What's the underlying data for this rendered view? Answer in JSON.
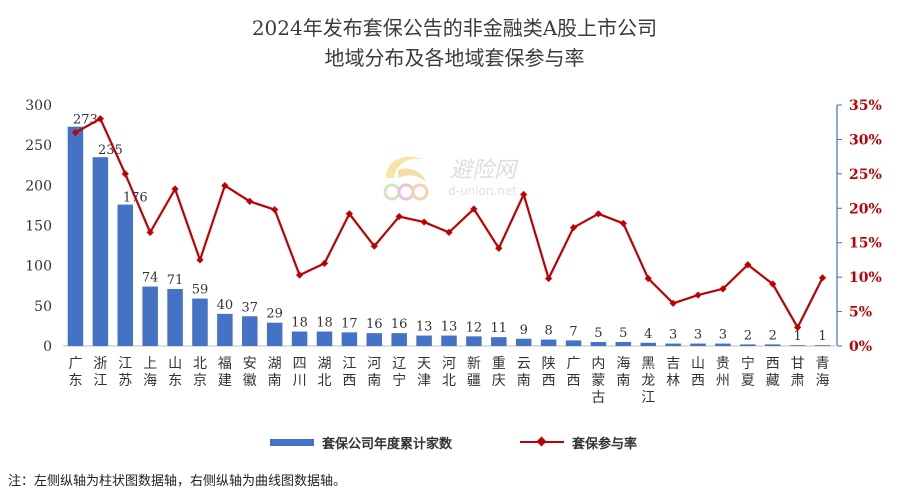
{
  "title_line1": "2024年发布套保公告的非金融类A股上市公司",
  "title_line2": "地域分布及各地域套保参与率",
  "note": "注：左侧纵轴为柱状图数据轴，右侧纵轴为曲线图数据轴。",
  "watermark": {
    "cn": "避险网",
    "en": "d-union.net"
  },
  "colors": {
    "bar": "#4472c4",
    "line": "#c00000",
    "axis_text": "#333333"
  },
  "chart_data": {
    "type": "bar+line",
    "categories": [
      "广东",
      "浙江",
      "江苏",
      "上海",
      "山东",
      "北京",
      "福建",
      "安徽",
      "湖南",
      "四川",
      "湖北",
      "江西",
      "河南",
      "辽宁",
      "天津",
      "河北",
      "新疆",
      "重庆",
      "云南",
      "陕西",
      "广西",
      "内蒙古",
      "海南",
      "黑龙江",
      "吉林",
      "山西",
      "贵州",
      "宁夏",
      "西藏",
      "甘肃",
      "青海"
    ],
    "series": [
      {
        "name": "套保公司年度累计家数",
        "type": "bar",
        "axis": "left",
        "values": [
          273,
          235,
          176,
          74,
          71,
          59,
          40,
          37,
          29,
          18,
          18,
          17,
          16,
          16,
          13,
          13,
          12,
          11,
          9,
          8,
          7,
          5,
          5,
          4,
          3,
          3,
          3,
          2,
          2,
          1,
          1
        ],
        "data_labels": [
          "273",
          "235",
          "176",
          "74",
          "71",
          "59",
          "40",
          "37",
          "29",
          "18",
          "18",
          "17",
          "16",
          "16",
          "13",
          "13",
          "12",
          "11",
          "9",
          "8",
          "7",
          "5",
          "5",
          "4",
          "3",
          "3",
          "3",
          "2",
          "2",
          "1",
          "1"
        ]
      },
      {
        "name": "套保参与率",
        "type": "line",
        "axis": "right",
        "values": [
          31.0,
          33.0,
          25.0,
          16.5,
          22.8,
          12.5,
          23.3,
          21.0,
          19.8,
          10.3,
          12.0,
          19.2,
          14.5,
          18.8,
          18.0,
          16.5,
          19.9,
          14.2,
          22.0,
          9.8,
          17.2,
          19.2,
          17.8,
          9.8,
          6.2,
          7.4,
          8.3,
          11.8,
          9.0,
          2.7,
          9.9
        ]
      }
    ],
    "y_left": {
      "min": 0,
      "max": 300,
      "ticks": [
        "0",
        "50",
        "100",
        "150",
        "200",
        "250",
        "300"
      ]
    },
    "y_right": {
      "min": 0,
      "max": 35,
      "ticks": [
        "0%",
        "5%",
        "10%",
        "15%",
        "20%",
        "25%",
        "30%",
        "35%"
      ]
    },
    "grid": false,
    "legend_position": "bottom"
  }
}
